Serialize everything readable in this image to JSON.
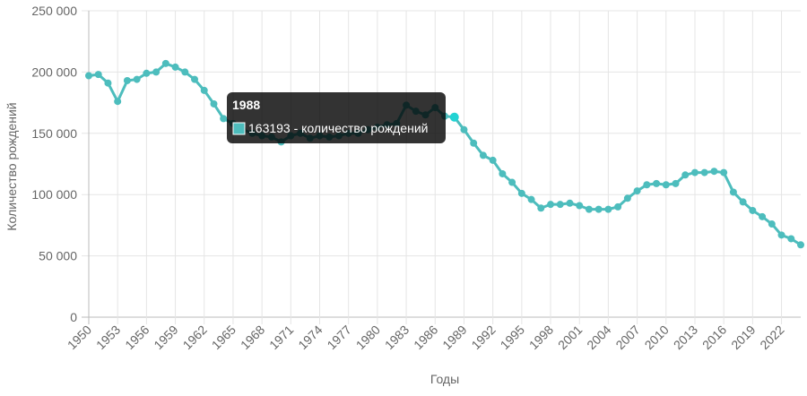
{
  "chart_data": {
    "type": "line",
    "y_axis_label": "Количество рождений",
    "x_axis_label": "Годы",
    "x": [
      1950,
      1951,
      1952,
      1953,
      1954,
      1955,
      1956,
      1957,
      1958,
      1959,
      1960,
      1961,
      1962,
      1963,
      1964,
      1965,
      1966,
      1967,
      1968,
      1969,
      1970,
      1971,
      1972,
      1973,
      1974,
      1975,
      1976,
      1977,
      1978,
      1979,
      1980,
      1981,
      1982,
      1983,
      1984,
      1985,
      1986,
      1987,
      1988,
      1989,
      1990,
      1991,
      1992,
      1993,
      1994,
      1995,
      1996,
      1997,
      1998,
      1999,
      2000,
      2001,
      2002,
      2003,
      2004,
      2005,
      2006,
      2007,
      2008,
      2009,
      2010,
      2011,
      2012,
      2013,
      2014,
      2015,
      2016,
      2017,
      2018,
      2019,
      2020,
      2021,
      2022,
      2023,
      2024
    ],
    "series": [
      {
        "name": "количество рождений",
        "color": "#4dbdbd",
        "values": [
          197000,
          198000,
          191000,
          176000,
          193000,
          194000,
          199000,
          200000,
          207000,
          204000,
          200000,
          194000,
          185000,
          174000,
          162000,
          158000,
          153000,
          150000,
          148000,
          147000,
          143000,
          148000,
          150000,
          146000,
          148000,
          147000,
          148000,
          150000,
          150000,
          153000,
          155000,
          157000,
          158000,
          173000,
          168000,
          165000,
          171000,
          164000,
          163193,
          153000,
          142000,
          132000,
          128000,
          117000,
          110000,
          101000,
          96000,
          89000,
          92000,
          92000,
          93000,
          91000,
          88000,
          88000,
          88000,
          90000,
          97000,
          103000,
          108000,
          109000,
          108000,
          109000,
          116000,
          118000,
          118000,
          119000,
          118000,
          102000,
          94000,
          87000,
          82000,
          76000,
          67000,
          64000,
          59000
        ]
      }
    ],
    "xlim": [
      1950,
      2024
    ],
    "xticks": [
      1950,
      1953,
      1956,
      1959,
      1962,
      1965,
      1968,
      1971,
      1974,
      1977,
      1980,
      1983,
      1986,
      1989,
      1992,
      1995,
      1998,
      2001,
      2004,
      2007,
      2010,
      2013,
      2016,
      2019,
      2022
    ],
    "ylim": [
      0,
      250000
    ],
    "yticks": [
      0,
      {
        "value": 50000,
        "label": "50 000"
      },
      {
        "value": 100000,
        "label": "100 000"
      },
      {
        "value": 150000,
        "label": "150 000"
      },
      {
        "value": 200000,
        "label": "200 000"
      },
      {
        "value": 250000,
        "label": "250 000"
      }
    ],
    "grid": true,
    "tooltip": {
      "title": "1988",
      "text": "163193 - количество рождений",
      "index": 38
    }
  }
}
